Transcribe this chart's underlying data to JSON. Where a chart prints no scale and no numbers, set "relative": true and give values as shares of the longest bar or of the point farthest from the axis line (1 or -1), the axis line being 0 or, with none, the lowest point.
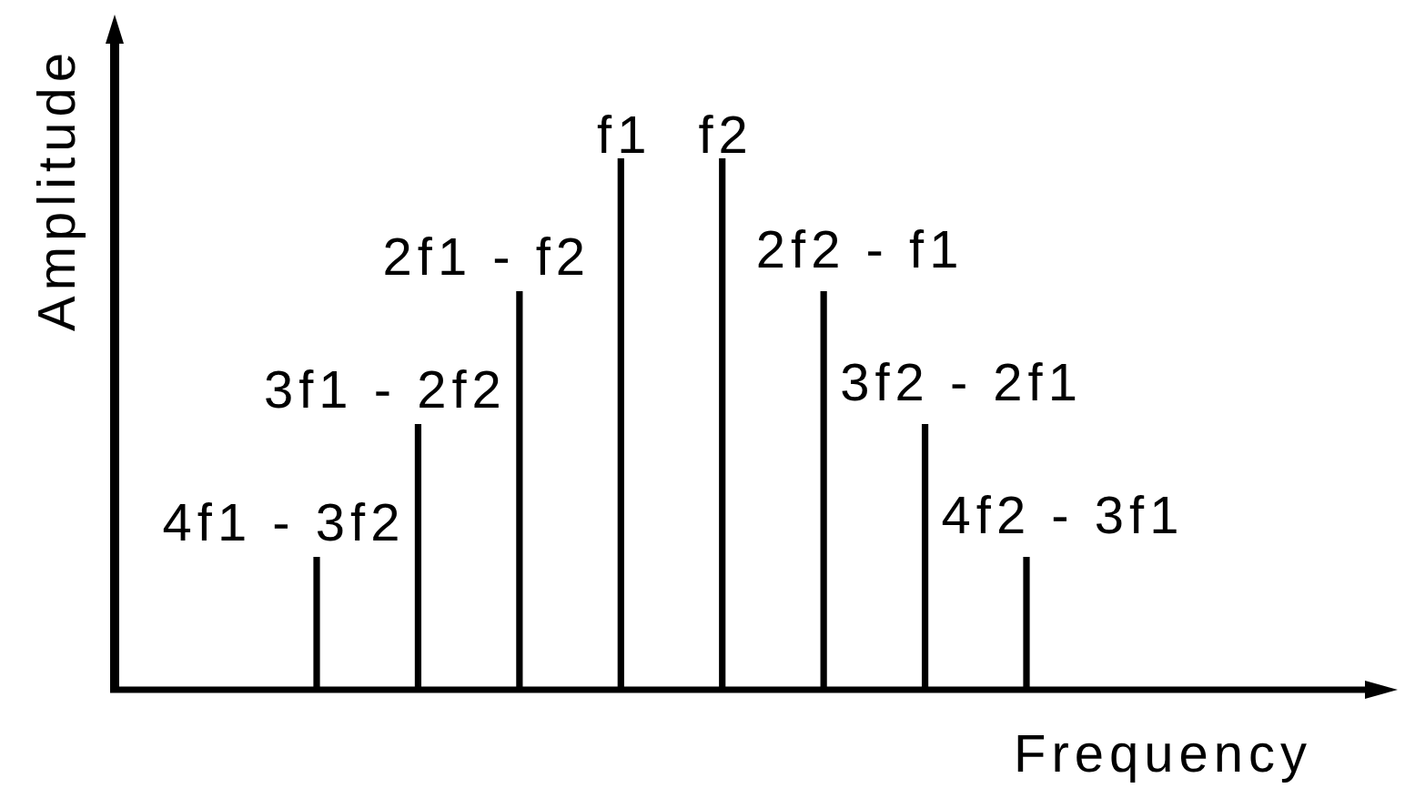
{
  "chart_data": {
    "type": "bar",
    "relative": true,
    "xlabel": "Frequency",
    "ylabel": "Amplitude",
    "categories": [
      "4f1 - 3f2",
      "3f1 - 2f2",
      "2f1 - f2",
      "f1",
      "f2",
      "2f2 - f1",
      "3f2 - 2f1",
      "4f2 - 3f1"
    ],
    "values": [
      0.25,
      0.5,
      0.75,
      1,
      1,
      0.75,
      0.5,
      0.25
    ],
    "color": "#000000"
  }
}
